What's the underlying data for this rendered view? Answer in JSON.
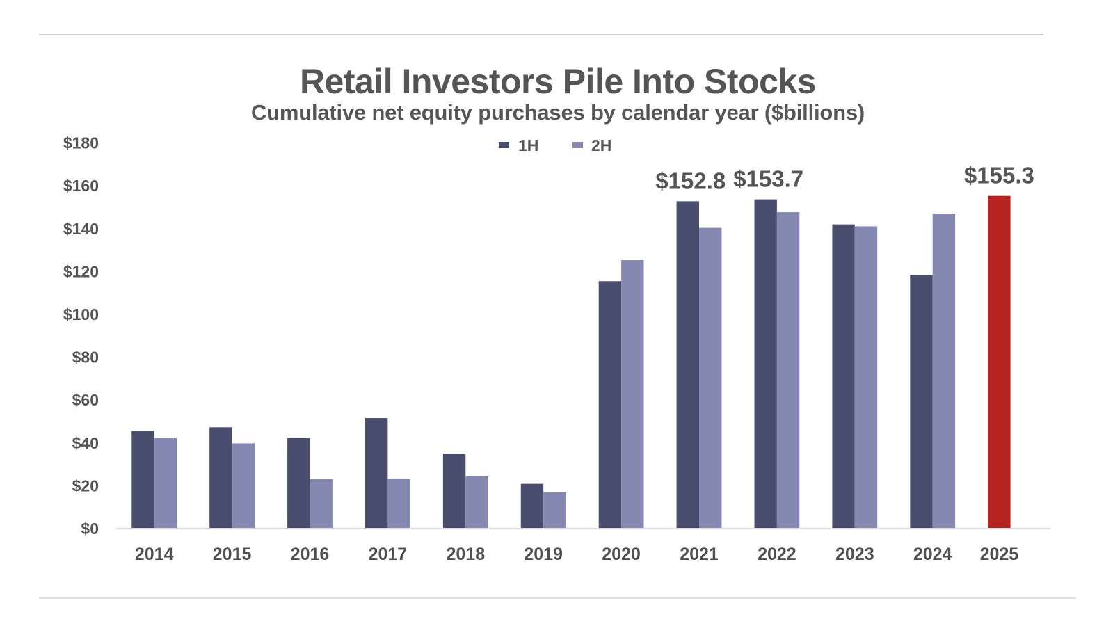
{
  "chart_data": {
    "type": "bar",
    "title": "Retail Investors Pile Into Stocks",
    "subtitle": "Cumulative net equity purchases by calendar year ($billions)",
    "xlabel": "",
    "ylabel": "",
    "ylim": [
      0,
      180
    ],
    "yticks": [
      0,
      20,
      40,
      60,
      80,
      100,
      120,
      140,
      160,
      180
    ],
    "ytick_labels": [
      "$0",
      "$20",
      "$40",
      "$60",
      "$80",
      "$100",
      "$120",
      "$140",
      "$160",
      "$180"
    ],
    "grid": false,
    "legend_position": "top-center",
    "categories": [
      "2014",
      "2015",
      "2016",
      "2017",
      "2018",
      "2019",
      "2020",
      "2021",
      "2022",
      "2023",
      "2024",
      "2025"
    ],
    "series": [
      {
        "name": "1H",
        "color": "#4a4e6e",
        "values": [
          45.6,
          47.3,
          42.3,
          51.6,
          35.0,
          20.9,
          115.5,
          152.8,
          153.7,
          142.0,
          118.2,
          155.3
        ]
      },
      {
        "name": "2H",
        "color": "#8589b2",
        "values": [
          42.3,
          39.8,
          23.1,
          23.4,
          24.4,
          16.9,
          125.3,
          140.4,
          147.7,
          141.1,
          147.0,
          null
        ]
      }
    ],
    "highlight": {
      "category": "2025",
      "series": "1H",
      "color": "#b62422"
    },
    "annotations": [
      {
        "category": "2021",
        "series": "1H",
        "text": "$152.8"
      },
      {
        "category": "2022",
        "series": "1H",
        "text": "$153.7"
      },
      {
        "category": "2025",
        "series": "1H",
        "text": "$155.3"
      }
    ]
  },
  "colors": {
    "text": "#555555",
    "axis": "#dcdce0"
  }
}
